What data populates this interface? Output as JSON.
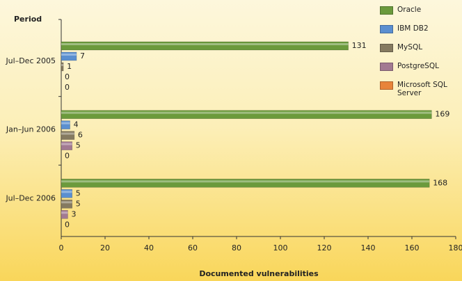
{
  "chart_data": {
    "type": "hbar",
    "y_axis_label": "Period",
    "x_axis_label": "Documented vulnerabilities",
    "categories": [
      "Jul–Dec 2005",
      "Jan–Jun 2006",
      "Jul–Dec 2006"
    ],
    "series": [
      {
        "name": "Oracle",
        "color": "#6b9a3c",
        "values": [
          131,
          169,
          168
        ]
      },
      {
        "name": "IBM DB2",
        "color": "#5b8fd0",
        "values": [
          7,
          4,
          5
        ]
      },
      {
        "name": "MySQL",
        "color": "#857a60",
        "values": [
          1,
          6,
          5
        ]
      },
      {
        "name": "PostgreSQL",
        "color": "#a27a92",
        "values": [
          0,
          5,
          3
        ]
      },
      {
        "name": "Microsoft SQL Server",
        "color": "#e8843a",
        "values": [
          0,
          0,
          0
        ]
      }
    ],
    "xlim": [
      0,
      180
    ],
    "xticks": [
      0,
      20,
      40,
      60,
      80,
      100,
      120,
      140,
      160,
      180
    ],
    "legend": "top-right",
    "grid": false
  }
}
